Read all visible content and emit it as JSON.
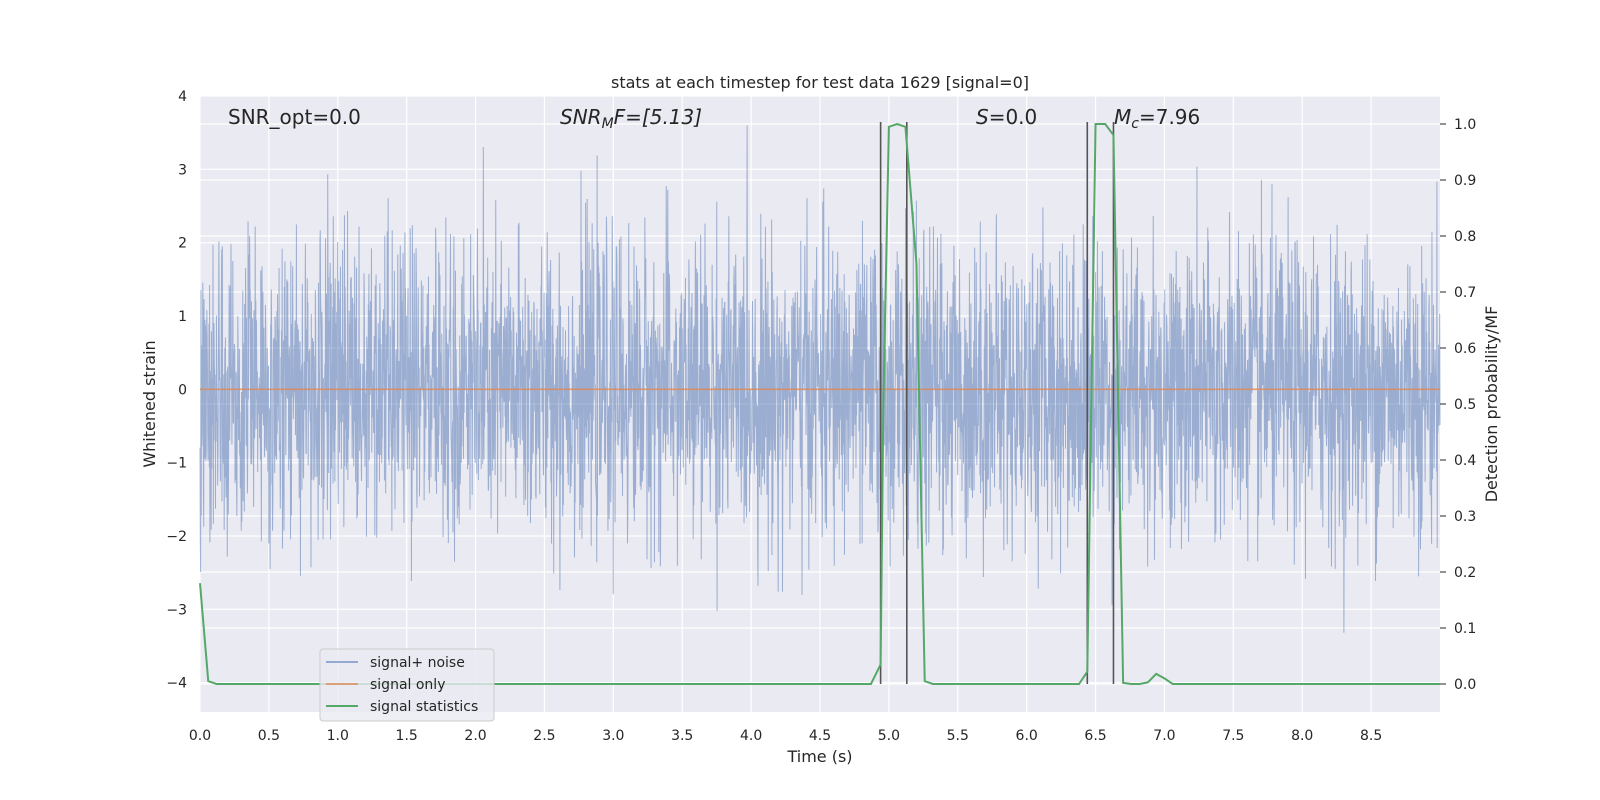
{
  "chart_data": {
    "type": "line",
    "title": "stats at each timestep for test data 1629 [signal=0]",
    "xlabel": "Time (s)",
    "ylabel": "Whitened strain",
    "y2label": "Detection probability/MF",
    "xlim": [
      0,
      9
    ],
    "ylim": [
      -4.4,
      4.0
    ],
    "y2lim": [
      -0.05,
      1.05
    ],
    "x_ticks": [
      0.0,
      0.5,
      1.0,
      1.5,
      2.0,
      2.5,
      3.0,
      3.5,
      4.0,
      4.5,
      5.0,
      5.5,
      6.0,
      6.5,
      7.0,
      7.5,
      8.0,
      8.5
    ],
    "x_tick_labels": [
      "0.0",
      "0.5",
      "1.0",
      "1.5",
      "2.0",
      "2.5",
      "3.0",
      "3.5",
      "4.0",
      "4.5",
      "5.0",
      "5.5",
      "6.0",
      "6.5",
      "7.0",
      "7.5",
      "8.0",
      "8.5"
    ],
    "y_ticks": [
      -4,
      -3,
      -2,
      -1,
      0,
      1,
      2,
      3,
      4
    ],
    "y_tick_labels": [
      "−4",
      "−3",
      "−2",
      "−1",
      "0",
      "1",
      "2",
      "3",
      "4"
    ],
    "y2_ticks": [
      0.0,
      0.1,
      0.2,
      0.3,
      0.4,
      0.5,
      0.6,
      0.7,
      0.8,
      0.9,
      1.0
    ],
    "y2_tick_labels": [
      "0.0",
      "0.1",
      "0.2",
      "0.3",
      "0.4",
      "0.5",
      "0.6",
      "0.7",
      "0.8",
      "0.9",
      "1.0"
    ],
    "grid": true,
    "legend_position": "lower-left",
    "annotations": {
      "snr_opt": "SNR_opt=0.0",
      "snr_mf_base": "SNR",
      "snr_mf_sub": "M",
      "snr_mf_rest": "F=[5.13]",
      "s_italic": "S",
      "s_rest": "=0.0",
      "mc_base": "M",
      "mc_sub": "c",
      "mc_rest": "=7.96"
    },
    "vertical_lines_x": [
      4.94,
      5.13,
      6.44,
      6.63
    ],
    "series": [
      {
        "name": "signal+ noise",
        "color": "#4c72b0",
        "axis": "left",
        "description_sample_count": 0,
        "envelope": {
          "sigma": 1.0,
          "min": -3.5,
          "max": 3.65,
          "spikes_x": [
            1.17,
            1.48,
            2.35,
            0.18,
            0.52,
            1.5
          ]
        }
      },
      {
        "name": "signal only",
        "color": "#dd8452",
        "axis": "left",
        "x": [
          0,
          9
        ],
        "y": [
          0,
          0
        ]
      },
      {
        "name": "signal statistics",
        "color": "#55a868",
        "axis": "right",
        "x": [
          0.0,
          0.06,
          0.12,
          0.2,
          0.5,
          1.0,
          2.0,
          3.0,
          4.0,
          4.87,
          4.94,
          4.96,
          5.0,
          5.06,
          5.12,
          5.2,
          5.26,
          5.32,
          5.5,
          6.0,
          6.38,
          6.44,
          6.5,
          6.57,
          6.63,
          6.7,
          6.76,
          6.82,
          6.88,
          6.94,
          7.0,
          7.06,
          7.12,
          7.5,
          8.0,
          8.5,
          9.0
        ],
        "y": [
          0.18,
          0.005,
          0.0,
          0.0,
          0.0,
          0.0,
          0.0,
          0.0,
          0.0,
          0.0,
          0.035,
          0.5,
          0.995,
          1.0,
          0.995,
          0.75,
          0.005,
          0.0,
          0.0,
          0.0,
          0.0,
          0.022,
          1.0,
          1.0,
          0.98,
          0.002,
          0.0,
          0.0,
          0.003,
          0.018,
          0.01,
          0.0,
          0.0,
          0.0,
          0.0,
          0.0,
          0.0
        ]
      }
    ]
  }
}
